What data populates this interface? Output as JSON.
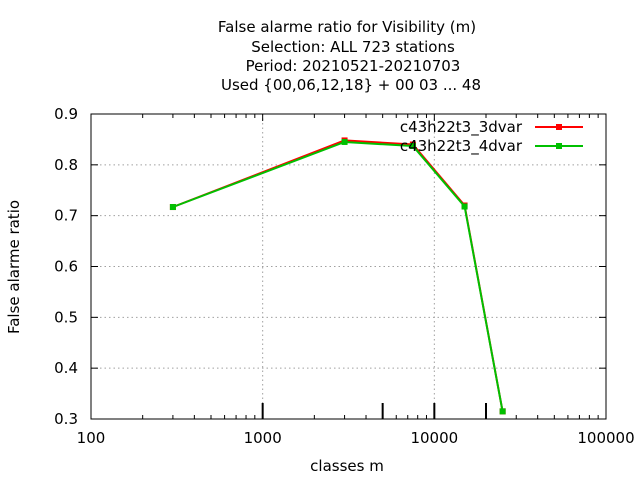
{
  "chart_data": {
    "type": "line",
    "title_lines": [
      "False alarme ratio  for Visibility (m)",
      "Selection: ALL    723 stations",
      "Period: 20210521-20210703",
      "Used {00,06,12,18} + 00 03 ... 48"
    ],
    "xlabel": "classes m",
    "ylabel": "False alarme ratio",
    "xscale": "log",
    "xlim": [
      100,
      100000
    ],
    "ylim": [
      0.3,
      0.9
    ],
    "xticks": [
      100,
      1000,
      10000,
      100000
    ],
    "xtick_labels": [
      "100",
      "1000",
      "10000",
      "100000"
    ],
    "yticks": [
      0.3,
      0.4,
      0.5,
      0.6,
      0.7,
      0.8,
      0.9
    ],
    "ytick_labels": [
      "0.3",
      "0.4",
      "0.5",
      "0.6",
      "0.7",
      "0.8",
      "0.9"
    ],
    "class_markers": [
      1000,
      5000,
      10000,
      20000
    ],
    "grid": true,
    "legend_position": "top-right",
    "series": [
      {
        "name": "c43h22t3_3dvar",
        "color": "#ff0000",
        "x": [
          300,
          3000,
          7500,
          15000,
          25000
        ],
        "y": [
          0.717,
          0.848,
          0.84,
          0.72,
          0.315
        ]
      },
      {
        "name": "c43h22t3_4dvar",
        "color": "#00c000",
        "x": [
          300,
          3000,
          7500,
          15000,
          25000
        ],
        "y": [
          0.717,
          0.845,
          0.837,
          0.718,
          0.315
        ]
      }
    ]
  }
}
